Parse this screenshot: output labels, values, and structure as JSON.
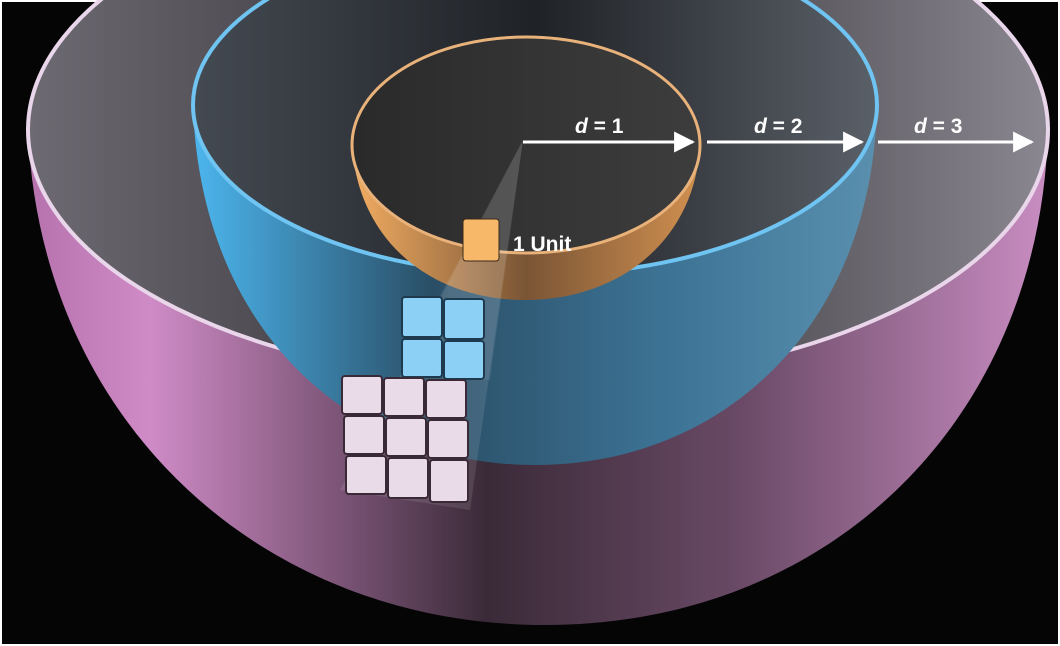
{
  "diagram": {
    "labels": {
      "d1": {
        "var": "d",
        "rest": " = 1"
      },
      "d2": {
        "var": "d",
        "rest": " = 2"
      },
      "d3": {
        "var": "d",
        "rest": " = 3"
      },
      "unit": "1 Unit"
    },
    "colors": {
      "background": "#050505",
      "outer_shell": "#c77fb9",
      "middle_shell": "#4aaee6",
      "inner_shell": "#f0a95e",
      "grid_cell_outer": "#eadbe8",
      "grid_cell_middle": "#8cd0f5",
      "grid_cell_inner": "#f7b86a",
      "arrow": "#ffffff"
    }
  }
}
